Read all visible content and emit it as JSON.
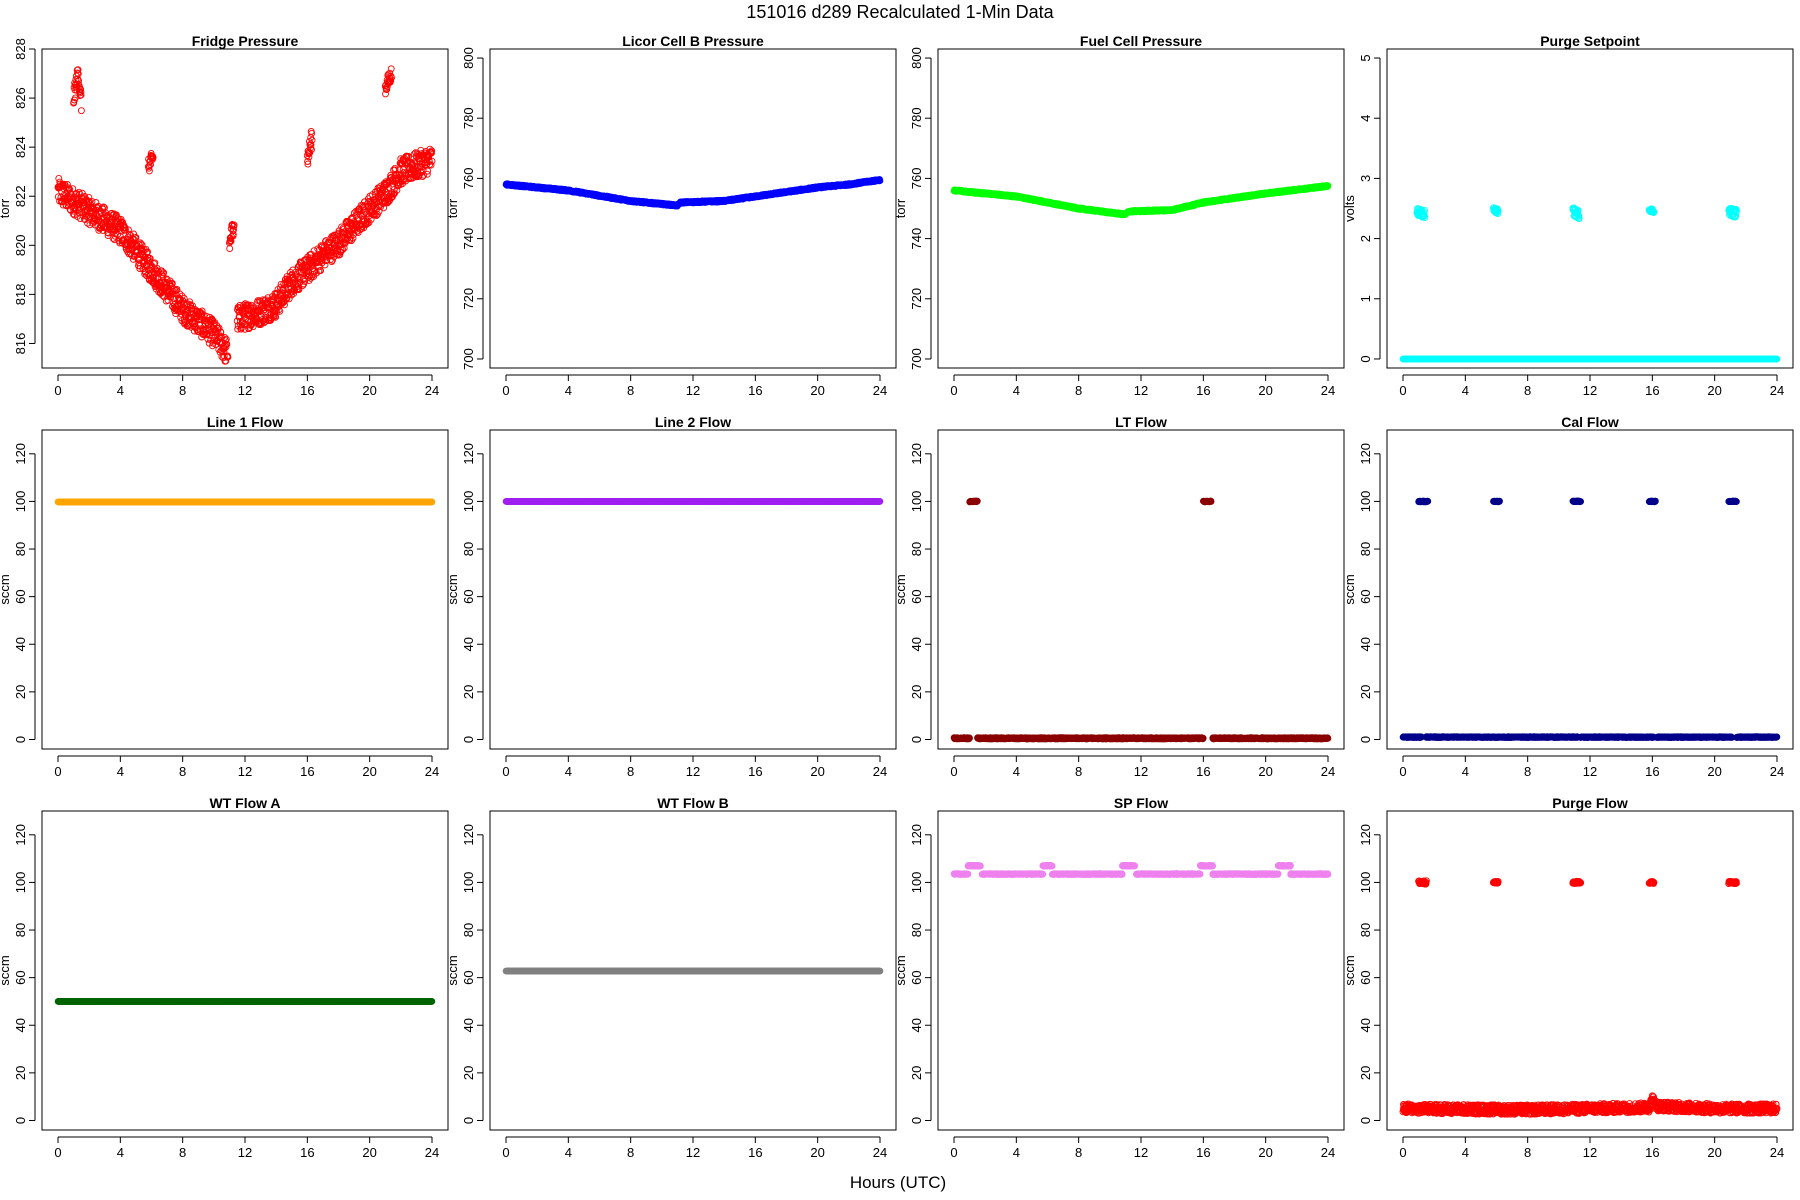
{
  "figure": {
    "title": "151016   d289   Recalculated 1-Min Data",
    "xlabel": "Hours (UTC)"
  },
  "chart_data": [
    {
      "type": "scatter",
      "title": "Fridge Pressure",
      "ylabel": "torr",
      "color": "#ff0000",
      "marker": "open-circle",
      "xlim": [
        0,
        24
      ],
      "ylim": [
        815,
        828
      ],
      "xticks": [
        0,
        4,
        8,
        12,
        16,
        20,
        24
      ],
      "yticks": [
        816,
        818,
        820,
        822,
        824,
        826,
        828
      ],
      "segments": [
        {
          "points": [
            [
              0,
              822.2
            ],
            [
              2,
              821.4
            ],
            [
              4,
              820.6
            ],
            [
              6,
              819.0
            ],
            [
              8,
              817.4
            ],
            [
              10,
              816.4
            ],
            [
              10.9,
              815.6
            ]
          ],
          "noise": 0.55
        },
        {
          "points": [
            [
              11.5,
              817.0
            ],
            [
              13,
              817.3
            ],
            [
              14,
              817.6
            ],
            [
              15,
              818.5
            ],
            [
              16,
              819.0
            ],
            [
              17,
              819.6
            ],
            [
              18,
              820.1
            ],
            [
              20,
              821.5
            ],
            [
              21,
              822.1
            ],
            [
              22,
              823.0
            ],
            [
              24,
              823.5
            ]
          ],
          "noise": 0.55
        },
        {
          "points": [
            [
              1.0,
              826.0
            ],
            [
              1.3,
              827.0
            ],
            [
              1.5,
              825.8
            ]
          ],
          "noise": 0.4
        },
        {
          "points": [
            [
              5.8,
              823.2
            ],
            [
              6.1,
              823.6
            ]
          ],
          "noise": 0.3
        },
        {
          "points": [
            [
              11.0,
              820.0
            ],
            [
              11.3,
              821.0
            ]
          ],
          "noise": 0.4
        },
        {
          "points": [
            [
              16.0,
              823.5
            ],
            [
              16.3,
              824.4
            ]
          ],
          "noise": 0.4
        },
        {
          "points": [
            [
              21.0,
              826.4
            ],
            [
              21.4,
              827.0
            ]
          ],
          "noise": 0.3
        }
      ]
    },
    {
      "type": "scatter",
      "title": "Licor Cell B Pressure",
      "ylabel": "torr",
      "color": "#0000ff",
      "marker": "filled-circle",
      "xlim": [
        0,
        24
      ],
      "ylim": [
        697,
        803
      ],
      "xticks": [
        0,
        4,
        8,
        12,
        16,
        20,
        24
      ],
      "yticks": [
        700,
        720,
        740,
        760,
        780,
        800
      ],
      "segments": [
        {
          "points": [
            [
              0,
              758
            ],
            [
              4,
              756
            ],
            [
              8,
              752.5
            ],
            [
              11,
              751
            ],
            [
              11.2,
              752
            ],
            [
              14,
              752.5
            ],
            [
              16,
              754
            ],
            [
              20,
              757
            ],
            [
              22,
              758
            ],
            [
              24,
              759.5
            ]
          ],
          "noise": 0.3
        }
      ]
    },
    {
      "type": "scatter",
      "title": "Fuel Cell Pressure",
      "ylabel": "torr",
      "color": "#00ff00",
      "marker": "filled-circle",
      "xlim": [
        0,
        24
      ],
      "ylim": [
        697,
        803
      ],
      "xticks": [
        0,
        4,
        8,
        12,
        16,
        20,
        24
      ],
      "yticks": [
        700,
        720,
        740,
        760,
        780,
        800
      ],
      "segments": [
        {
          "points": [
            [
              0,
              756
            ],
            [
              4,
              754
            ],
            [
              8,
              750
            ],
            [
              11,
              748
            ],
            [
              11.2,
              749
            ],
            [
              14,
              749.5
            ],
            [
              16,
              752
            ],
            [
              20,
              755
            ],
            [
              24,
              757.5
            ]
          ],
          "noise": 0.3
        }
      ]
    },
    {
      "type": "scatter",
      "title": "Purge Setpoint",
      "ylabel": "volts",
      "color": "#00ffff",
      "marker": "mixed",
      "xlim": [
        0,
        24
      ],
      "ylim": [
        -0.15,
        5.15
      ],
      "xticks": [
        0,
        4,
        8,
        12,
        16,
        20,
        24
      ],
      "yticks": [
        0,
        1,
        2,
        3,
        4,
        5
      ],
      "segments": [
        {
          "points": [
            [
              0,
              0
            ],
            [
              24,
              0
            ]
          ],
          "noise": 0,
          "filled": true
        },
        {
          "points": [
            [
              0.9,
              2.45
            ],
            [
              1.4,
              2.4
            ]
          ],
          "noise": 0.07
        },
        {
          "points": [
            [
              5.8,
              2.48
            ],
            [
              6.1,
              2.45
            ]
          ],
          "noise": 0.04
        },
        {
          "points": [
            [
              10.9,
              2.45
            ],
            [
              11.3,
              2.4
            ]
          ],
          "noise": 0.07
        },
        {
          "points": [
            [
              15.8,
              2.48
            ],
            [
              16.1,
              2.46
            ]
          ],
          "noise": 0.03
        },
        {
          "points": [
            [
              20.9,
              2.45
            ],
            [
              21.4,
              2.42
            ]
          ],
          "noise": 0.07
        }
      ]
    },
    {
      "type": "scatter",
      "title": "Line 1 Flow",
      "ylabel": "sccm",
      "color": "#ffa500",
      "marker": "filled-circle",
      "xlim": [
        0,
        24
      ],
      "ylim": [
        -4,
        130
      ],
      "xticks": [
        0,
        4,
        8,
        12,
        16,
        20,
        24
      ],
      "yticks": [
        0,
        20,
        40,
        60,
        80,
        100,
        120
      ],
      "segments": [
        {
          "points": [
            [
              0,
              99.8
            ],
            [
              24,
              99.8
            ]
          ],
          "noise": 0
        }
      ]
    },
    {
      "type": "scatter",
      "title": "Line 2 Flow",
      "ylabel": "sccm",
      "color": "#a020f0",
      "marker": "filled-circle",
      "xlim": [
        0,
        24
      ],
      "ylim": [
        -4,
        130
      ],
      "xticks": [
        0,
        4,
        8,
        12,
        16,
        20,
        24
      ],
      "yticks": [
        0,
        20,
        40,
        60,
        80,
        100,
        120
      ],
      "segments": [
        {
          "points": [
            [
              0,
              100
            ],
            [
              24,
              100
            ]
          ],
          "noise": 0
        }
      ]
    },
    {
      "type": "scatter",
      "title": "LT Flow",
      "ylabel": "sccm",
      "color": "#8b0000",
      "marker": "filled-circle",
      "xlim": [
        0,
        24
      ],
      "ylim": [
        -4,
        130
      ],
      "xticks": [
        0,
        4,
        8,
        12,
        16,
        20,
        24
      ],
      "yticks": [
        0,
        20,
        40,
        60,
        80,
        100,
        120
      ],
      "segments": [
        {
          "points": [
            [
              0,
              0.5
            ],
            [
              1.0,
              0.5
            ]
          ],
          "noise": 0.3
        },
        {
          "points": [
            [
              1.5,
              0.5
            ],
            [
              16.0,
              0.5
            ]
          ],
          "noise": 0.3
        },
        {
          "points": [
            [
              16.6,
              0.5
            ],
            [
              24,
              0.5
            ]
          ],
          "noise": 0.3
        },
        {
          "points": [
            [
              1.0,
              100
            ],
            [
              1.5,
              100
            ]
          ],
          "noise": 0.2
        },
        {
          "points": [
            [
              16.0,
              100
            ],
            [
              16.5,
              100
            ]
          ],
          "noise": 0.2
        }
      ]
    },
    {
      "type": "scatter",
      "title": "Cal Flow",
      "ylabel": "sccm",
      "color": "#00008b",
      "marker": "filled-circle",
      "xlim": [
        0,
        24
      ],
      "ylim": [
        -4,
        130
      ],
      "xticks": [
        0,
        4,
        8,
        12,
        16,
        20,
        24
      ],
      "yticks": [
        0,
        20,
        40,
        60,
        80,
        100,
        120
      ],
      "segments": [
        {
          "points": [
            [
              0,
              1
            ],
            [
              1.2,
              1
            ]
          ],
          "noise": 0.2
        },
        {
          "points": [
            [
              1.5,
              1
            ],
            [
              11.2,
              1
            ]
          ],
          "noise": 0.2
        },
        {
          "points": [
            [
              11.4,
              1
            ],
            [
              16.1,
              1
            ]
          ],
          "noise": 0.2
        },
        {
          "points": [
            [
              16.3,
              1
            ],
            [
              21.1,
              1
            ]
          ],
          "noise": 0.2
        },
        {
          "points": [
            [
              21.4,
              1
            ],
            [
              24,
              1
            ]
          ],
          "noise": 0.2
        },
        {
          "points": [
            [
              1.0,
              100
            ],
            [
              1.6,
              100
            ]
          ],
          "noise": 0.2
        },
        {
          "points": [
            [
              5.8,
              100
            ],
            [
              6.2,
              100
            ]
          ],
          "noise": 0.2
        },
        {
          "points": [
            [
              10.9,
              100
            ],
            [
              11.4,
              100
            ]
          ],
          "noise": 0.2
        },
        {
          "points": [
            [
              15.8,
              100
            ],
            [
              16.2,
              100
            ]
          ],
          "noise": 0.2
        },
        {
          "points": [
            [
              20.9,
              100
            ],
            [
              21.4,
              100
            ]
          ],
          "noise": 0.2
        }
      ]
    },
    {
      "type": "scatter",
      "title": "WT Flow A",
      "ylabel": "sccm",
      "color": "#006400",
      "marker": "filled-circle",
      "xlim": [
        0,
        24
      ],
      "ylim": [
        -4,
        130
      ],
      "xticks": [
        0,
        4,
        8,
        12,
        16,
        20,
        24
      ],
      "yticks": [
        0,
        20,
        40,
        60,
        80,
        100,
        120
      ],
      "segments": [
        {
          "points": [
            [
              0,
              50
            ],
            [
              24,
              50
            ]
          ],
          "noise": 0
        }
      ]
    },
    {
      "type": "scatter",
      "title": "WT Flow B",
      "ylabel": "sccm",
      "color": "#808080",
      "marker": "filled-circle",
      "xlim": [
        0,
        24
      ],
      "ylim": [
        -4,
        130
      ],
      "xticks": [
        0,
        4,
        8,
        12,
        16,
        20,
        24
      ],
      "yticks": [
        0,
        20,
        40,
        60,
        80,
        100,
        120
      ],
      "segments": [
        {
          "points": [
            [
              0,
              62.8
            ],
            [
              24,
              62.8
            ]
          ],
          "noise": 0
        }
      ]
    },
    {
      "type": "scatter",
      "title": "SP Flow",
      "ylabel": "sccm",
      "color": "#ee82ee",
      "marker": "filled-circle",
      "xlim": [
        0,
        24
      ],
      "ylim": [
        -4,
        130
      ],
      "xticks": [
        0,
        4,
        8,
        12,
        16,
        20,
        24
      ],
      "yticks": [
        0,
        20,
        40,
        60,
        80,
        100,
        120
      ],
      "segments": [
        {
          "points": [
            [
              0,
              103.5
            ],
            [
              0.9,
              103.5
            ]
          ],
          "noise": 0.2
        },
        {
          "points": [
            [
              1.8,
              103.5
            ],
            [
              5.7,
              103.5
            ]
          ],
          "noise": 0.2
        },
        {
          "points": [
            [
              6.3,
              103.5
            ],
            [
              10.8,
              103.5
            ]
          ],
          "noise": 0.2
        },
        {
          "points": [
            [
              11.7,
              103.5
            ],
            [
              15.8,
              103.5
            ]
          ],
          "noise": 0.2
        },
        {
          "points": [
            [
              16.6,
              103.5
            ],
            [
              20.8,
              103.5
            ]
          ],
          "noise": 0.2
        },
        {
          "points": [
            [
              21.6,
              103.5
            ],
            [
              24,
              103.5
            ]
          ],
          "noise": 0.2
        },
        {
          "points": [
            [
              0.9,
              107
            ],
            [
              1.7,
              107
            ]
          ],
          "noise": 0.2
        },
        {
          "points": [
            [
              5.7,
              107
            ],
            [
              6.3,
              107
            ]
          ],
          "noise": 0.2
        },
        {
          "points": [
            [
              10.8,
              107
            ],
            [
              11.6,
              107
            ]
          ],
          "noise": 0.2
        },
        {
          "points": [
            [
              15.8,
              107
            ],
            [
              16.6,
              107
            ]
          ],
          "noise": 0.2
        },
        {
          "points": [
            [
              20.8,
              107
            ],
            [
              21.6,
              107
            ]
          ],
          "noise": 0.2
        }
      ]
    },
    {
      "type": "scatter",
      "title": "Purge Flow",
      "ylabel": "sccm",
      "color": "#ff0000",
      "marker": "open-circle",
      "xlim": [
        0,
        24
      ],
      "ylim": [
        -4,
        130
      ],
      "xticks": [
        0,
        4,
        8,
        12,
        16,
        20,
        24
      ],
      "yticks": [
        0,
        20,
        40,
        60,
        80,
        100,
        120
      ],
      "segments": [
        {
          "points": [
            [
              0,
              5
            ],
            [
              8,
              4.5
            ],
            [
              15.8,
              5.5
            ],
            [
              16.0,
              9
            ],
            [
              16.3,
              6
            ],
            [
              20,
              5
            ],
            [
              24,
              5
            ]
          ],
          "noise": 2.0
        },
        {
          "points": [
            [
              1.0,
              100
            ],
            [
              1.5,
              100
            ]
          ],
          "noise": 0.7
        },
        {
          "points": [
            [
              5.8,
              100
            ],
            [
              6.1,
              100
            ]
          ],
          "noise": 0.4
        },
        {
          "points": [
            [
              10.9,
              100
            ],
            [
              11.4,
              100
            ]
          ],
          "noise": 0.5
        },
        {
          "points": [
            [
              15.8,
              100
            ],
            [
              16.1,
              100
            ]
          ],
          "noise": 0.4
        },
        {
          "points": [
            [
              20.9,
              100
            ],
            [
              21.4,
              100
            ]
          ],
          "noise": 0.5
        }
      ]
    }
  ]
}
